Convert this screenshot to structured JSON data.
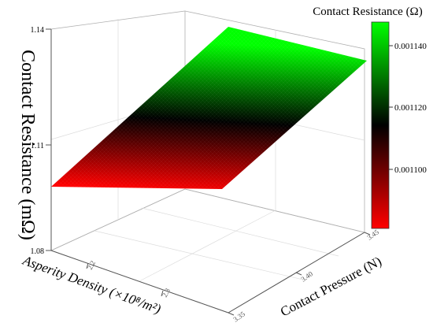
{
  "chart_data": {
    "type": "surface3d",
    "title": "",
    "xlabel": "Asperity Density (×10⁸/m²)",
    "ylabel": "Contact Pressure (N)",
    "zlabel": "Contact Resistance (mΩ)",
    "x_ticks": [
      "2.2",
      "2.3"
    ],
    "y_ticks": [
      "3.35",
      "3.40",
      "3.45"
    ],
    "z_ticks": [
      "1.08",
      "1.11",
      "1.14"
    ],
    "zlim": [
      1.08,
      1.14
    ],
    "surface_corners": [
      {
        "x": 2.4,
        "y": 3.35,
        "z": 1.1006
      },
      {
        "x": 2.4,
        "y": 3.45,
        "z": 1.1138
      },
      {
        "x": 2.15,
        "y": 3.45,
        "z": 1.1147
      },
      {
        "x": 2.15,
        "y": 3.35,
        "z": 1.1004
      }
    ],
    "colorbar": {
      "title": "Contact Resistance (Ω)",
      "ticks": [
        "0.001140",
        "0.001120",
        "0.001100"
      ],
      "colors": [
        "#00ff00",
        "#000000",
        "#ff0000"
      ]
    }
  }
}
